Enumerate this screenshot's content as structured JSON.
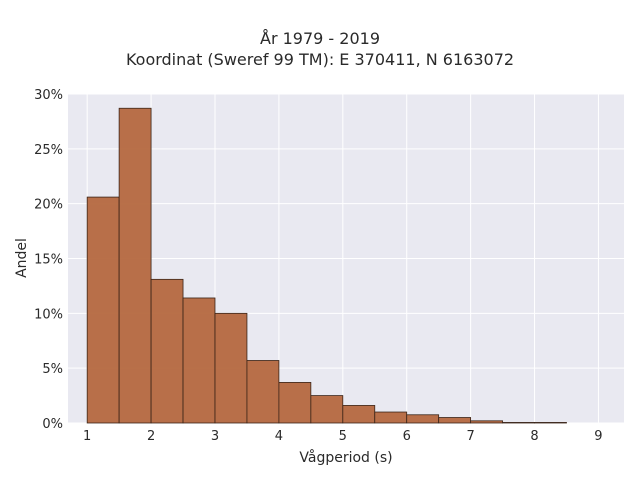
{
  "chart_data": {
    "type": "bar",
    "title": "År 1979 - 2019",
    "subtitle": "Koordinat (Sweref 99 TM): E 370411, N 6163072",
    "xlabel": "Vågperiod (s)",
    "ylabel": "Andel",
    "xlim": [
      0.7,
      9.4
    ],
    "ylim": [
      0,
      30
    ],
    "x_ticks": [
      1,
      2,
      3,
      4,
      5,
      6,
      7,
      8,
      9
    ],
    "y_ticks": [
      0,
      5,
      10,
      15,
      20,
      25,
      30
    ],
    "y_tick_labels": [
      "0%",
      "5%",
      "10%",
      "15%",
      "20%",
      "25%",
      "30%"
    ],
    "bin_width": 0.5,
    "bins": [
      {
        "start": 1.0,
        "value": 20.6
      },
      {
        "start": 1.5,
        "value": 28.7
      },
      {
        "start": 2.0,
        "value": 13.1
      },
      {
        "start": 2.5,
        "value": 11.4
      },
      {
        "start": 3.0,
        "value": 10.0
      },
      {
        "start": 3.5,
        "value": 5.7
      },
      {
        "start": 4.0,
        "value": 3.7
      },
      {
        "start": 4.5,
        "value": 2.5
      },
      {
        "start": 5.0,
        "value": 1.6
      },
      {
        "start": 5.5,
        "value": 1.0
      },
      {
        "start": 6.0,
        "value": 0.75
      },
      {
        "start": 6.5,
        "value": 0.5
      },
      {
        "start": 7.0,
        "value": 0.2
      },
      {
        "start": 7.5,
        "value": 0.05
      },
      {
        "start": 8.0,
        "value": 0.05
      }
    ],
    "bar_color": "#b5683f",
    "bar_edge_color": "#3a2418",
    "background_color": "#e9e9f1",
    "grid": true,
    "grid_color": "#ffffff"
  }
}
